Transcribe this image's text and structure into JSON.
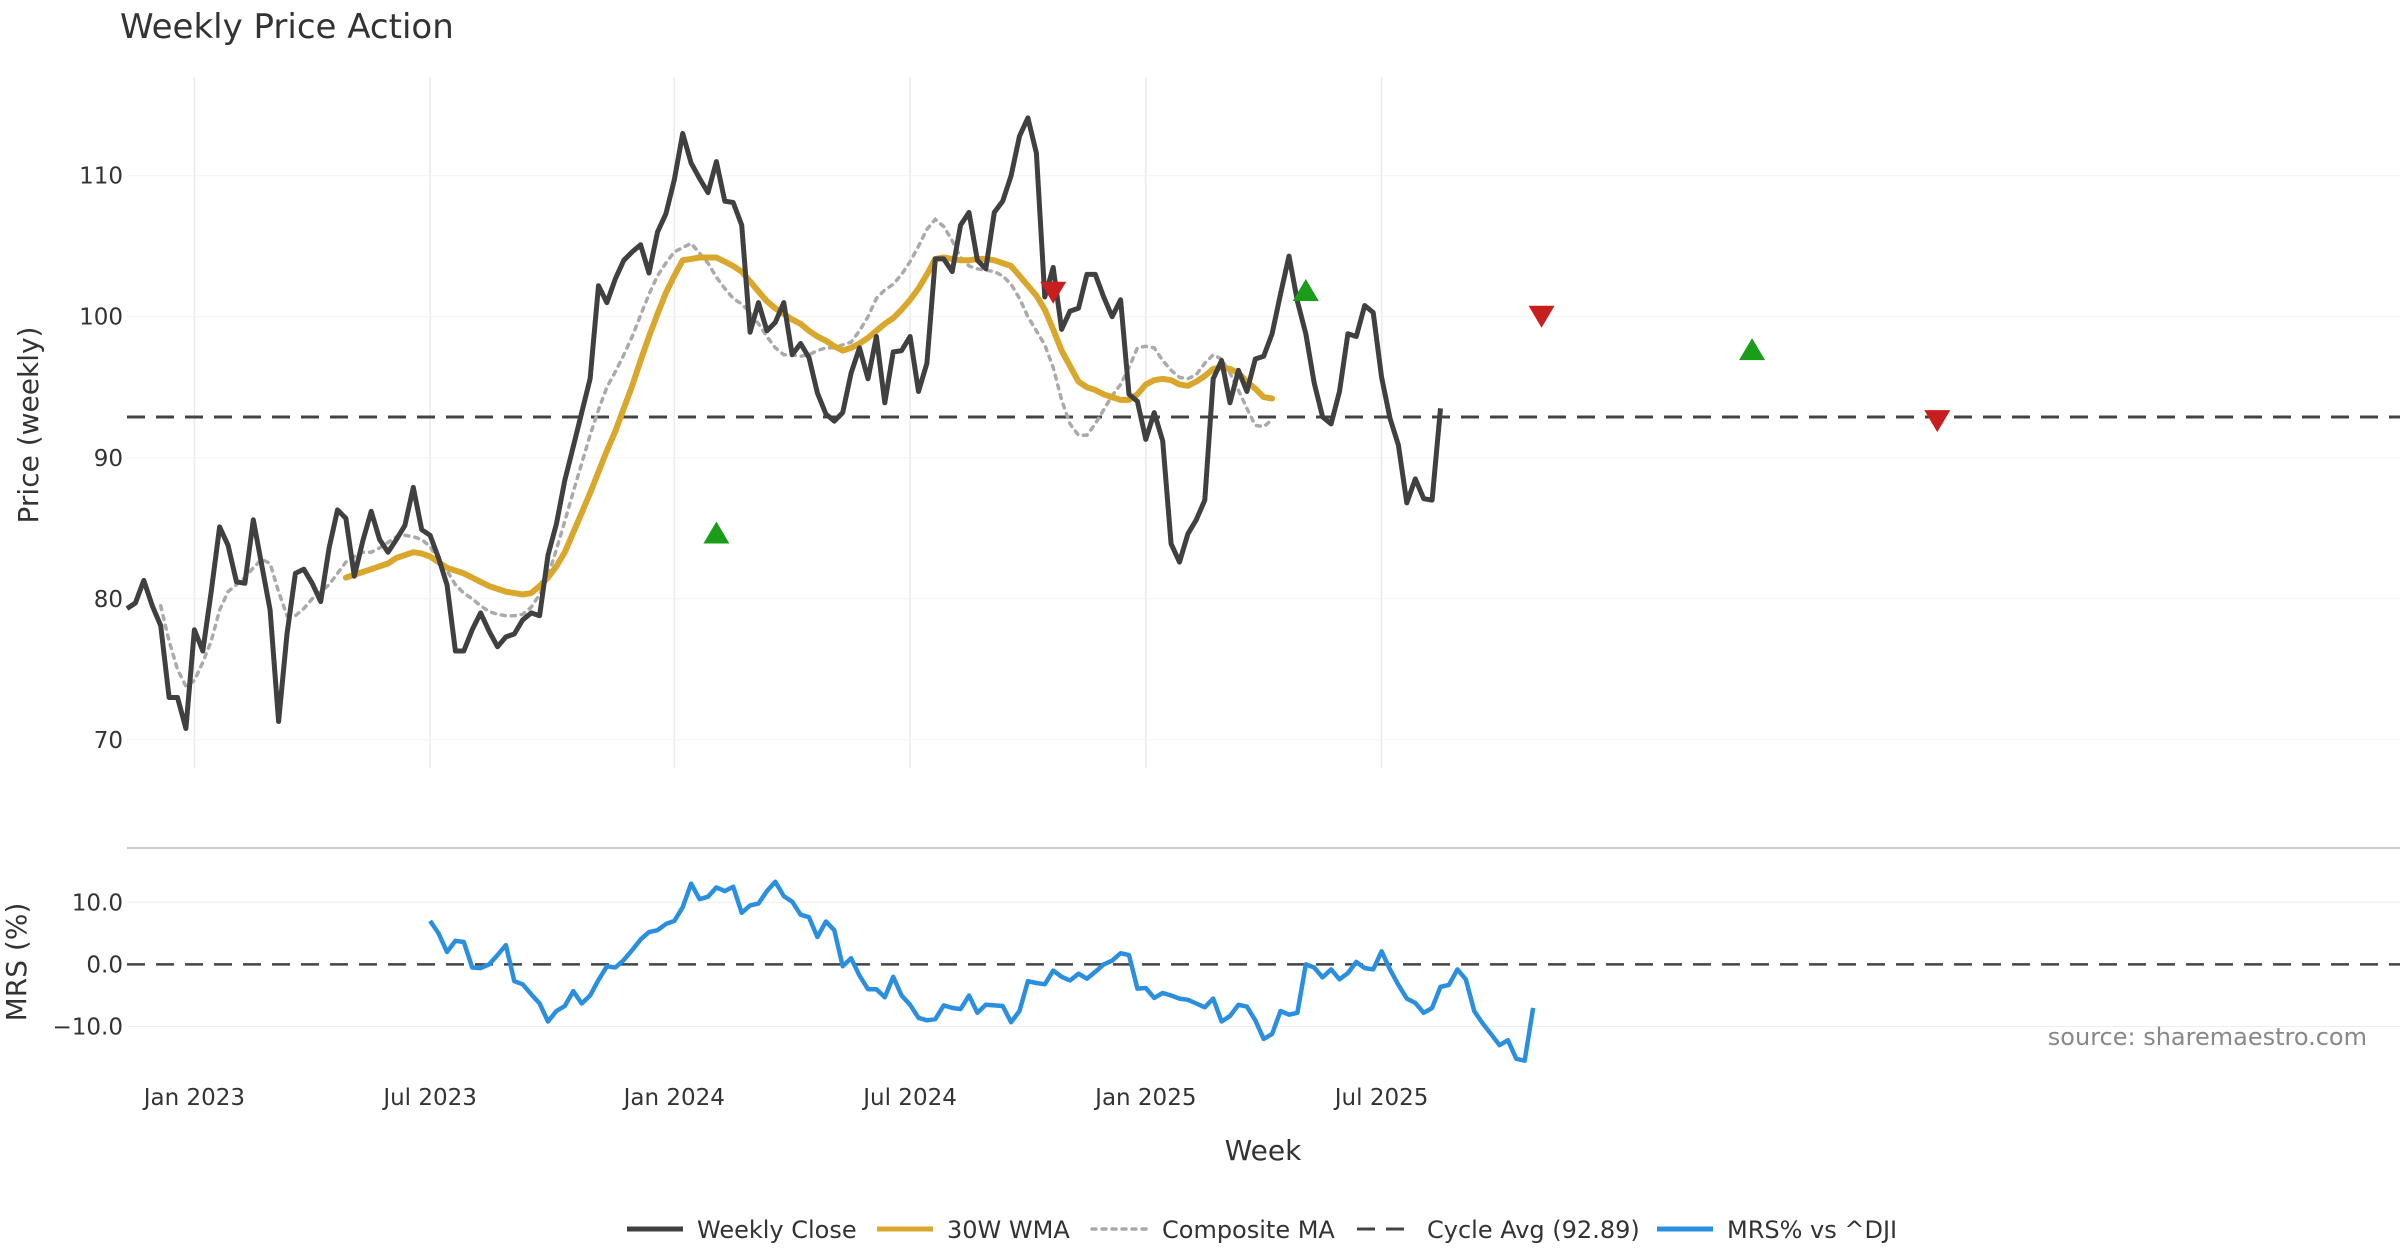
{
  "chart_data": {
    "type": "line",
    "title": "Weekly Price Action",
    "xlabel": "Week",
    "source_note": "source: sharemaestro.com",
    "x_ticks": [
      "Jan 2023",
      "Jul 2023",
      "Jan 2024",
      "Jul 2024",
      "Jan 2025",
      "Jul 2025"
    ],
    "price_panel": {
      "ylabel": "Price (weekly)",
      "ylim": [
        68,
        117
      ],
      "y_ticks": [
        70,
        80,
        90,
        100,
        110
      ],
      "cycle_avg": 92.89,
      "series": [
        {
          "name": "Weekly Close",
          "color": "#404040",
          "start_week": 0,
          "values": [
            79.3,
            79.7,
            81.3,
            79.5,
            78.1,
            73.0,
            73.0,
            70.8,
            77.8,
            76.3,
            80.5,
            85.1,
            83.8,
            81.2,
            81.1,
            85.6,
            82.4,
            79.2,
            71.3,
            77.5,
            81.8,
            82.1,
            81.1,
            79.8,
            83.6,
            86.3,
            85.7,
            81.6,
            84.1,
            86.2,
            84.2,
            83.3,
            84.2,
            85.2,
            87.9,
            84.9,
            84.5,
            82.9,
            81.0,
            76.3,
            76.3,
            77.8,
            79.0,
            77.7,
            76.6,
            77.3,
            77.5,
            78.5,
            79.0,
            78.8,
            83.1,
            85.3,
            88.4,
            90.8,
            93.2,
            95.6,
            102.2,
            101.0,
            102.7,
            104.0,
            104.6,
            105.1,
            103.1,
            106.0,
            107.3,
            109.7,
            113.0,
            110.9,
            109.8,
            108.8,
            111.0,
            108.2,
            108.1,
            106.5,
            98.9,
            101.0,
            99.0,
            99.6,
            101.0,
            97.3,
            98.1,
            97.1,
            94.6,
            93.1,
            92.6,
            93.2,
            96.0,
            97.8,
            95.6,
            98.6,
            93.9,
            97.5,
            97.6,
            98.6,
            94.7,
            96.7,
            104.1,
            104.1,
            103.2,
            106.5,
            107.4,
            104.0,
            103.4,
            107.4,
            108.2,
            110.0,
            112.8,
            114.1,
            111.6,
            101.4,
            103.5,
            99.1,
            100.4,
            100.6,
            103.0,
            103.0,
            101.4,
            100.0,
            101.2,
            94.5,
            94.0,
            91.3,
            93.2,
            91.2,
            83.9,
            82.6,
            84.6,
            85.6,
            87.0,
            95.6,
            96.9,
            93.9,
            96.2,
            94.7,
            97.0,
            97.2,
            98.8,
            101.6,
            104.3,
            101.1,
            98.8,
            95.3,
            92.9,
            92.4,
            94.7,
            98.8,
            98.6,
            100.8,
            100.3,
            95.7,
            92.8,
            90.9,
            86.8,
            88.5,
            87.1,
            87.0,
            93.5
          ]
        },
        {
          "name": "30W WMA",
          "color": "#d9a72b",
          "start_week": 26,
          "values": [
            81.5,
            81.7,
            81.9,
            82.1,
            82.3,
            82.5,
            82.9,
            83.1,
            83.3,
            83.2,
            83.0,
            82.6,
            82.2,
            82.0,
            81.8,
            81.5,
            81.2,
            80.9,
            80.7,
            80.5,
            80.4,
            80.3,
            80.4,
            80.9,
            81.5,
            82.3,
            83.3,
            84.7,
            86.1,
            87.5,
            89.0,
            90.5,
            91.9,
            93.5,
            95.1,
            96.9,
            98.6,
            100.2,
            101.7,
            102.9,
            104.0,
            104.1,
            104.2,
            104.2,
            104.2,
            103.9,
            103.6,
            103.2,
            102.5,
            101.8,
            101.1,
            100.6,
            100.2,
            99.8,
            99.5,
            99.0,
            98.6,
            98.3,
            97.9,
            97.6,
            97.8,
            98.1,
            98.5,
            99.0,
            99.5,
            99.9,
            100.5,
            101.2,
            102.0,
            103.0,
            104.1,
            104.2,
            104.1,
            104.0,
            104.0,
            104.1,
            104.1,
            104.0,
            103.8,
            103.6,
            102.9,
            102.2,
            101.5,
            100.5,
            99.1,
            97.6,
            96.5,
            95.4,
            95.0,
            94.8,
            94.5,
            94.3,
            94.1,
            94.1,
            94.5,
            95.2,
            95.5,
            95.6,
            95.5,
            95.2,
            95.1,
            95.4,
            95.8,
            96.3,
            96.4,
            96.3,
            96.0,
            95.4,
            94.9,
            94.3,
            94.2
          ]
        },
        {
          "name": "Composite MA",
          "color": "#aaaaaa",
          "start_week": 4,
          "values": [
            79.5,
            77.0,
            75.0,
            73.8,
            74.2,
            75.5,
            77.0,
            79.2,
            80.5,
            81.0,
            81.5,
            82.2,
            82.8,
            82.5,
            80.5,
            78.8,
            78.8,
            79.3,
            80.0,
            80.5,
            81.0,
            81.8,
            82.6,
            83.0,
            83.3,
            83.3,
            83.6,
            84.0,
            84.4,
            84.5,
            84.4,
            84.2,
            83.7,
            82.8,
            82.0,
            81.0,
            80.4,
            80.0,
            79.5,
            79.1,
            78.9,
            78.8,
            78.8,
            78.9,
            79.4,
            80.3,
            81.6,
            83.5,
            85.5,
            87.6,
            89.6,
            91.6,
            93.4,
            95.0,
            96.1,
            97.3,
            98.6,
            100.1,
            101.6,
            102.9,
            103.8,
            104.6,
            104.9,
            105.2,
            104.5,
            103.8,
            102.8,
            102.0,
            101.3,
            100.9,
            100.3,
            99.5,
            98.6,
            97.8,
            97.3,
            97.3,
            97.2,
            97.3,
            97.6,
            97.8,
            97.8,
            98.0,
            98.2,
            99.0,
            100.0,
            101.3,
            101.9,
            102.3,
            103.0,
            103.9,
            105.0,
            106.2,
            106.9,
            106.4,
            105.4,
            104.2,
            103.6,
            103.4,
            103.3,
            103.2,
            102.9,
            102.3,
            101.3,
            100.0,
            99.0,
            98.0,
            96.4,
            94.1,
            92.4,
            91.6,
            91.6,
            92.4,
            93.4,
            94.4,
            95.2,
            96.4,
            97.8,
            97.9,
            97.8,
            96.9,
            96.2,
            95.7,
            95.6,
            95.9,
            96.7,
            97.3,
            97.0,
            96.0,
            94.8,
            93.5,
            92.3,
            92.2,
            92.7
          ]
        }
      ],
      "buy_signals": [
        {
          "week": 70,
          "value": 84.7
        },
        {
          "week": 140,
          "value": 101.9
        },
        {
          "week": 193,
          "value": 97.7
        }
      ],
      "sell_signals": [
        {
          "week": 110,
          "value": 101.7
        },
        {
          "week": 168,
          "value": 100.0
        },
        {
          "week": 215,
          "value": 92.6
        }
      ]
    },
    "mrs_panel": {
      "ylabel": "MRS (%)",
      "ylim": [
        -17,
        16
      ],
      "y_ticks": [
        "10.0",
        "0.0",
        "−10.0"
      ],
      "y_tick_values": [
        10,
        0,
        -10
      ],
      "series": [
        {
          "name": "MRS% vs ^DJI",
          "color": "#2b8fe0",
          "start_week": 36,
          "values": [
            7.0,
            5.0,
            2.0,
            3.8,
            3.6,
            -0.5,
            -0.6,
            0.0,
            1.5,
            3.1,
            -2.7,
            -3.2,
            -4.8,
            -6.3,
            -9.2,
            -7.5,
            -6.7,
            -4.3,
            -6.3,
            -5.0,
            -2.5,
            -0.3,
            -0.5,
            0.7,
            2.3,
            4.0,
            5.2,
            5.5,
            6.5,
            7.0,
            9.2,
            13.0,
            10.5,
            10.9,
            12.4,
            11.8,
            12.5,
            8.3,
            9.5,
            9.8,
            11.8,
            13.3,
            11.0,
            10.1,
            8.0,
            7.6,
            4.4,
            6.9,
            5.5,
            -0.3,
            1.0,
            -1.8,
            -4.0,
            -4.0,
            -5.3,
            -2.0,
            -5.0,
            -6.5,
            -8.6,
            -9.0,
            -8.8,
            -6.6,
            -7.0,
            -7.2,
            -5.0,
            -7.8,
            -6.5,
            -6.6,
            -6.7,
            -9.3,
            -7.5,
            -2.7,
            -3.0,
            -3.2,
            -1.0,
            -2.0,
            -2.6,
            -1.5,
            -2.3,
            -1.2,
            0.0,
            0.6,
            1.8,
            1.5,
            -3.9,
            -3.8,
            -5.4,
            -4.6,
            -5.0,
            -5.5,
            -5.7,
            -6.3,
            -6.9,
            -5.5,
            -9.2,
            -8.3,
            -6.5,
            -6.8,
            -9.0,
            -12.0,
            -11.2,
            -7.5,
            -8.1,
            -7.8,
            0.0,
            -0.5,
            -2.1,
            -0.8,
            -2.4,
            -1.4,
            0.4,
            -0.6,
            -0.8,
            2.1,
            -0.8,
            -3.3,
            -5.5,
            -6.2,
            -7.8,
            -7.0,
            -3.6,
            -3.3,
            -0.8,
            -2.4,
            -7.5,
            -9.5,
            -11.2,
            -13.0,
            -12.2,
            -15.2,
            -15.5,
            -7.0
          ]
        }
      ]
    },
    "legend": [
      {
        "label": "Weekly Close",
        "color": "#404040",
        "style": "solid"
      },
      {
        "label": "30W WMA",
        "color": "#d9a72b",
        "style": "solid"
      },
      {
        "label": "Composite MA",
        "color": "#aaaaaa",
        "style": "dotted"
      },
      {
        "label": "Cycle Avg (92.89)",
        "color": "#444444",
        "style": "dashed"
      },
      {
        "label": "MRS% vs ^DJI",
        "color": "#2b8fe0",
        "style": "solid"
      }
    ],
    "signal_colors": {
      "buy": "#1a9e1a",
      "sell": "#c81e1e"
    }
  }
}
